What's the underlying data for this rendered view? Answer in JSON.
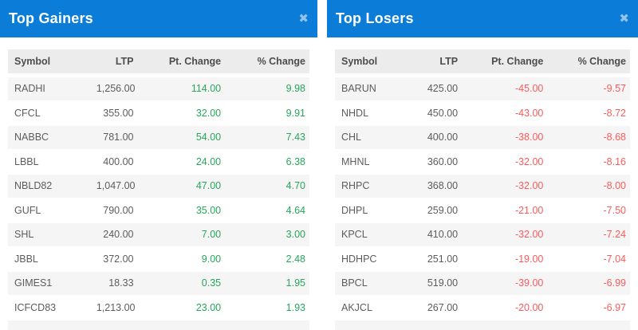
{
  "colors": {
    "header-bg": "#0b7cd8",
    "thead-bg": "#ececec",
    "stripe": "#f5f5f5",
    "row-text": "#5c5c5c",
    "head-text": "#4d4d4d",
    "gain": "#26a65b",
    "loss": "#fb5b5b"
  },
  "panels": [
    {
      "title": "Top Gainers",
      "close_icon": "✖",
      "columns": [
        "Symbol",
        "LTP",
        "Pt. Change",
        "% Change"
      ],
      "change_color": "#26a65b",
      "rows": [
        {
          "symbol": "RADHI",
          "ltp": "1,256.00",
          "pt_change": "114.00",
          "pct_change": "9.98"
        },
        {
          "symbol": "CFCL",
          "ltp": "355.00",
          "pt_change": "32.00",
          "pct_change": "9.91"
        },
        {
          "symbol": "NABBC",
          "ltp": "781.00",
          "pt_change": "54.00",
          "pct_change": "7.43"
        },
        {
          "symbol": "LBBL",
          "ltp": "400.00",
          "pt_change": "24.00",
          "pct_change": "6.38"
        },
        {
          "symbol": "NBLD82",
          "ltp": "1,047.00",
          "pt_change": "47.00",
          "pct_change": "4.70"
        },
        {
          "symbol": "GUFL",
          "ltp": "790.00",
          "pt_change": "35.00",
          "pct_change": "4.64"
        },
        {
          "symbol": "SHL",
          "ltp": "240.00",
          "pt_change": "7.00",
          "pct_change": "3.00"
        },
        {
          "symbol": "JBBL",
          "ltp": "372.00",
          "pt_change": "9.00",
          "pct_change": "2.48"
        },
        {
          "symbol": "GIMES1",
          "ltp": "18.33",
          "pt_change": "0.35",
          "pct_change": "1.95"
        },
        {
          "symbol": "ICFCD83",
          "ltp": "1,213.00",
          "pt_change": "23.00",
          "pct_change": "1.93"
        }
      ]
    },
    {
      "title": "Top Losers",
      "close_icon": "✖",
      "columns": [
        "Symbol",
        "LTP",
        "Pt. Change",
        "% Change"
      ],
      "change_color": "#fb5b5b",
      "rows": [
        {
          "symbol": "BARUN",
          "ltp": "425.00",
          "pt_change": "-45.00",
          "pct_change": "-9.57"
        },
        {
          "symbol": "NHDL",
          "ltp": "450.00",
          "pt_change": "-43.00",
          "pct_change": "-8.72"
        },
        {
          "symbol": "CHL",
          "ltp": "400.00",
          "pt_change": "-38.00",
          "pct_change": "-8.68"
        },
        {
          "symbol": "MHNL",
          "ltp": "360.00",
          "pt_change": "-32.00",
          "pct_change": "-8.16"
        },
        {
          "symbol": "RHPC",
          "ltp": "368.00",
          "pt_change": "-32.00",
          "pct_change": "-8.00"
        },
        {
          "symbol": "DHPL",
          "ltp": "259.00",
          "pt_change": "-21.00",
          "pct_change": "-7.50"
        },
        {
          "symbol": "KPCL",
          "ltp": "410.00",
          "pt_change": "-32.00",
          "pct_change": "-7.24"
        },
        {
          "symbol": "HDHPC",
          "ltp": "251.00",
          "pt_change": "-19.00",
          "pct_change": "-7.04"
        },
        {
          "symbol": "BPCL",
          "ltp": "519.00",
          "pt_change": "-39.00",
          "pct_change": "-6.99"
        },
        {
          "symbol": "AKJCL",
          "ltp": "267.00",
          "pt_change": "-20.00",
          "pct_change": "-6.97"
        }
      ]
    }
  ]
}
